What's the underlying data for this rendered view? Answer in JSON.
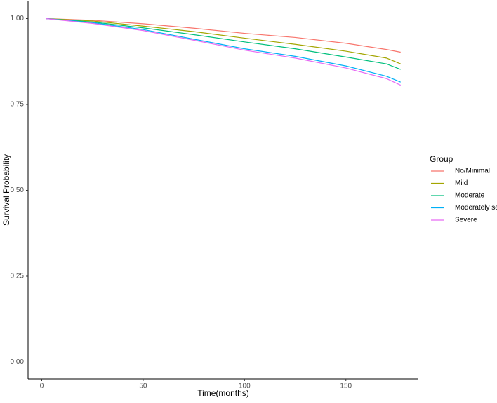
{
  "chart_data": {
    "type": "line",
    "xlabel": "Time(months)",
    "ylabel": "Survival Probability",
    "legend_title": "Group",
    "legend_position": "right",
    "x": [
      2,
      25,
      50,
      75,
      100,
      125,
      150,
      170,
      177
    ],
    "series": [
      {
        "name": "No/Minimal",
        "color": "#F8766D",
        "values": [
          1.0,
          0.995,
          0.985,
          0.972,
          0.957,
          0.945,
          0.928,
          0.91,
          0.902
        ]
      },
      {
        "name": "Mild",
        "color": "#A3A500",
        "values": [
          1.0,
          0.993,
          0.978,
          0.962,
          0.943,
          0.925,
          0.905,
          0.885,
          0.868
        ]
      },
      {
        "name": "Moderate",
        "color": "#00BF7D",
        "values": [
          1.0,
          0.99,
          0.973,
          0.953,
          0.932,
          0.912,
          0.888,
          0.868,
          0.852
        ]
      },
      {
        "name": "Moderately severe",
        "color": "#00B0F6",
        "values": [
          1.0,
          0.988,
          0.968,
          0.94,
          0.912,
          0.89,
          0.862,
          0.832,
          0.815
        ]
      },
      {
        "name": "Severe",
        "color": "#E76BF3",
        "values": [
          1.0,
          0.986,
          0.965,
          0.937,
          0.908,
          0.885,
          0.856,
          0.825,
          0.806
        ]
      }
    ],
    "xlim": [
      -6.75,
      185.75
    ],
    "ylim": [
      -0.05,
      1.05
    ],
    "xticks": [
      0,
      50,
      100,
      150
    ],
    "yticks": [
      {
        "value": 0,
        "label": "0.00"
      },
      {
        "value": 0.25,
        "label": "0.25"
      },
      {
        "value": 0.5,
        "label": "0.50"
      },
      {
        "value": 0.75,
        "label": "0.75"
      },
      {
        "value": 1,
        "label": "1.00"
      }
    ]
  }
}
